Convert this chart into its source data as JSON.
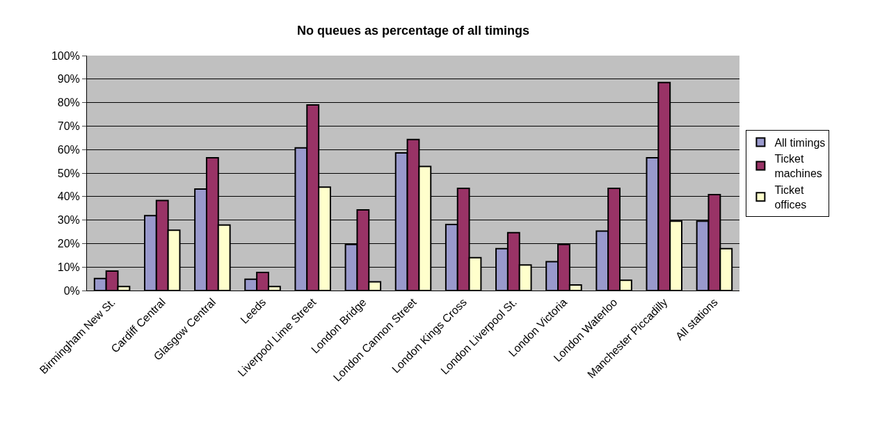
{
  "chart_data": {
    "type": "bar",
    "title": "No queues as percentage of all timings",
    "categories": [
      "Birmingham New St.",
      "Cardiff Central",
      "Glasgow Central",
      "Leeds",
      "Liverpool Lime Street",
      "London Bridge",
      "London Cannon Street",
      "London Kings Cross",
      "London Liverpool St.",
      "London Victoria",
      "London Waterloo",
      "Manchester Piccadilly",
      "All stations"
    ],
    "series": [
      {
        "name": "All timings",
        "color": "#9999cc",
        "values": [
          5.1,
          31.9,
          43.2,
          4.8,
          60.7,
          19.6,
          58.6,
          28.1,
          17.8,
          12.3,
          25.3,
          56.5,
          29.5
        ]
      },
      {
        "name": "Ticket machines",
        "color": "#993366",
        "values": [
          8.3,
          38.3,
          56.5,
          7.7,
          79.0,
          34.3,
          64.3,
          43.5,
          24.6,
          19.6,
          43.5,
          88.5,
          40.8
        ]
      },
      {
        "name": "Ticket offices",
        "color": "#ffffcc",
        "values": [
          1.7,
          25.7,
          27.9,
          1.7,
          44.0,
          3.7,
          52.8,
          14.0,
          10.9,
          2.4,
          4.4,
          29.5,
          17.8
        ]
      }
    ],
    "ylim": [
      0,
      100
    ],
    "yticks": [
      {
        "value": 0,
        "label": "0%"
      },
      {
        "value": 10,
        "label": "10%"
      },
      {
        "value": 20,
        "label": "20%"
      },
      {
        "value": 30,
        "label": "30%"
      },
      {
        "value": 40,
        "label": "40%"
      },
      {
        "value": 50,
        "label": "50%"
      },
      {
        "value": 60,
        "label": "60%"
      },
      {
        "value": 70,
        "label": "70%"
      },
      {
        "value": 80,
        "label": "80%"
      },
      {
        "value": 90,
        "label": "90%"
      },
      {
        "value": 100,
        "label": "100%"
      }
    ],
    "grid": "y",
    "legend": "right"
  }
}
